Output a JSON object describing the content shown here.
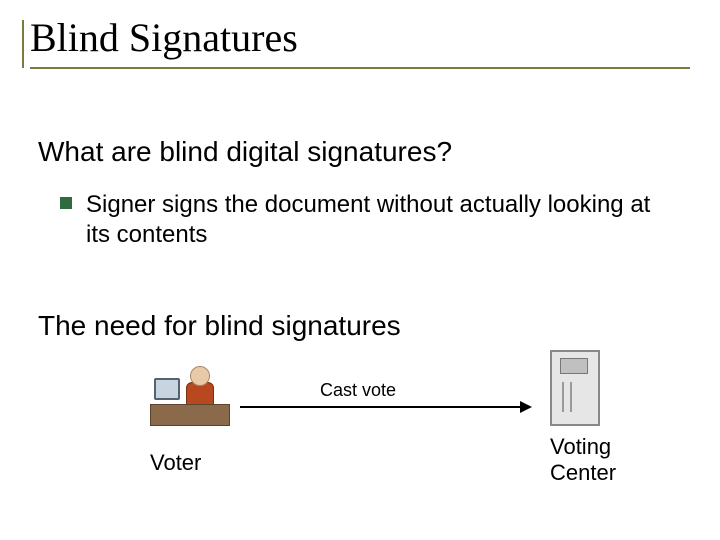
{
  "title": "Blind Signatures",
  "sub1": "What are blind digital signatures?",
  "body1": "Signer signs the document without actually looking at its contents",
  "sub2": "The need for blind signatures",
  "diagram": {
    "cast_label": "Cast vote",
    "voter_label": "Voter",
    "center_label_line1": "Voting",
    "center_label_line2": "Center"
  },
  "colors": {
    "underline": "#7b7b3e",
    "bullet": "#2e6b3f",
    "desk": "#8a6a4a",
    "torso": "#b84820",
    "server_bg": "#e6e6e6"
  }
}
